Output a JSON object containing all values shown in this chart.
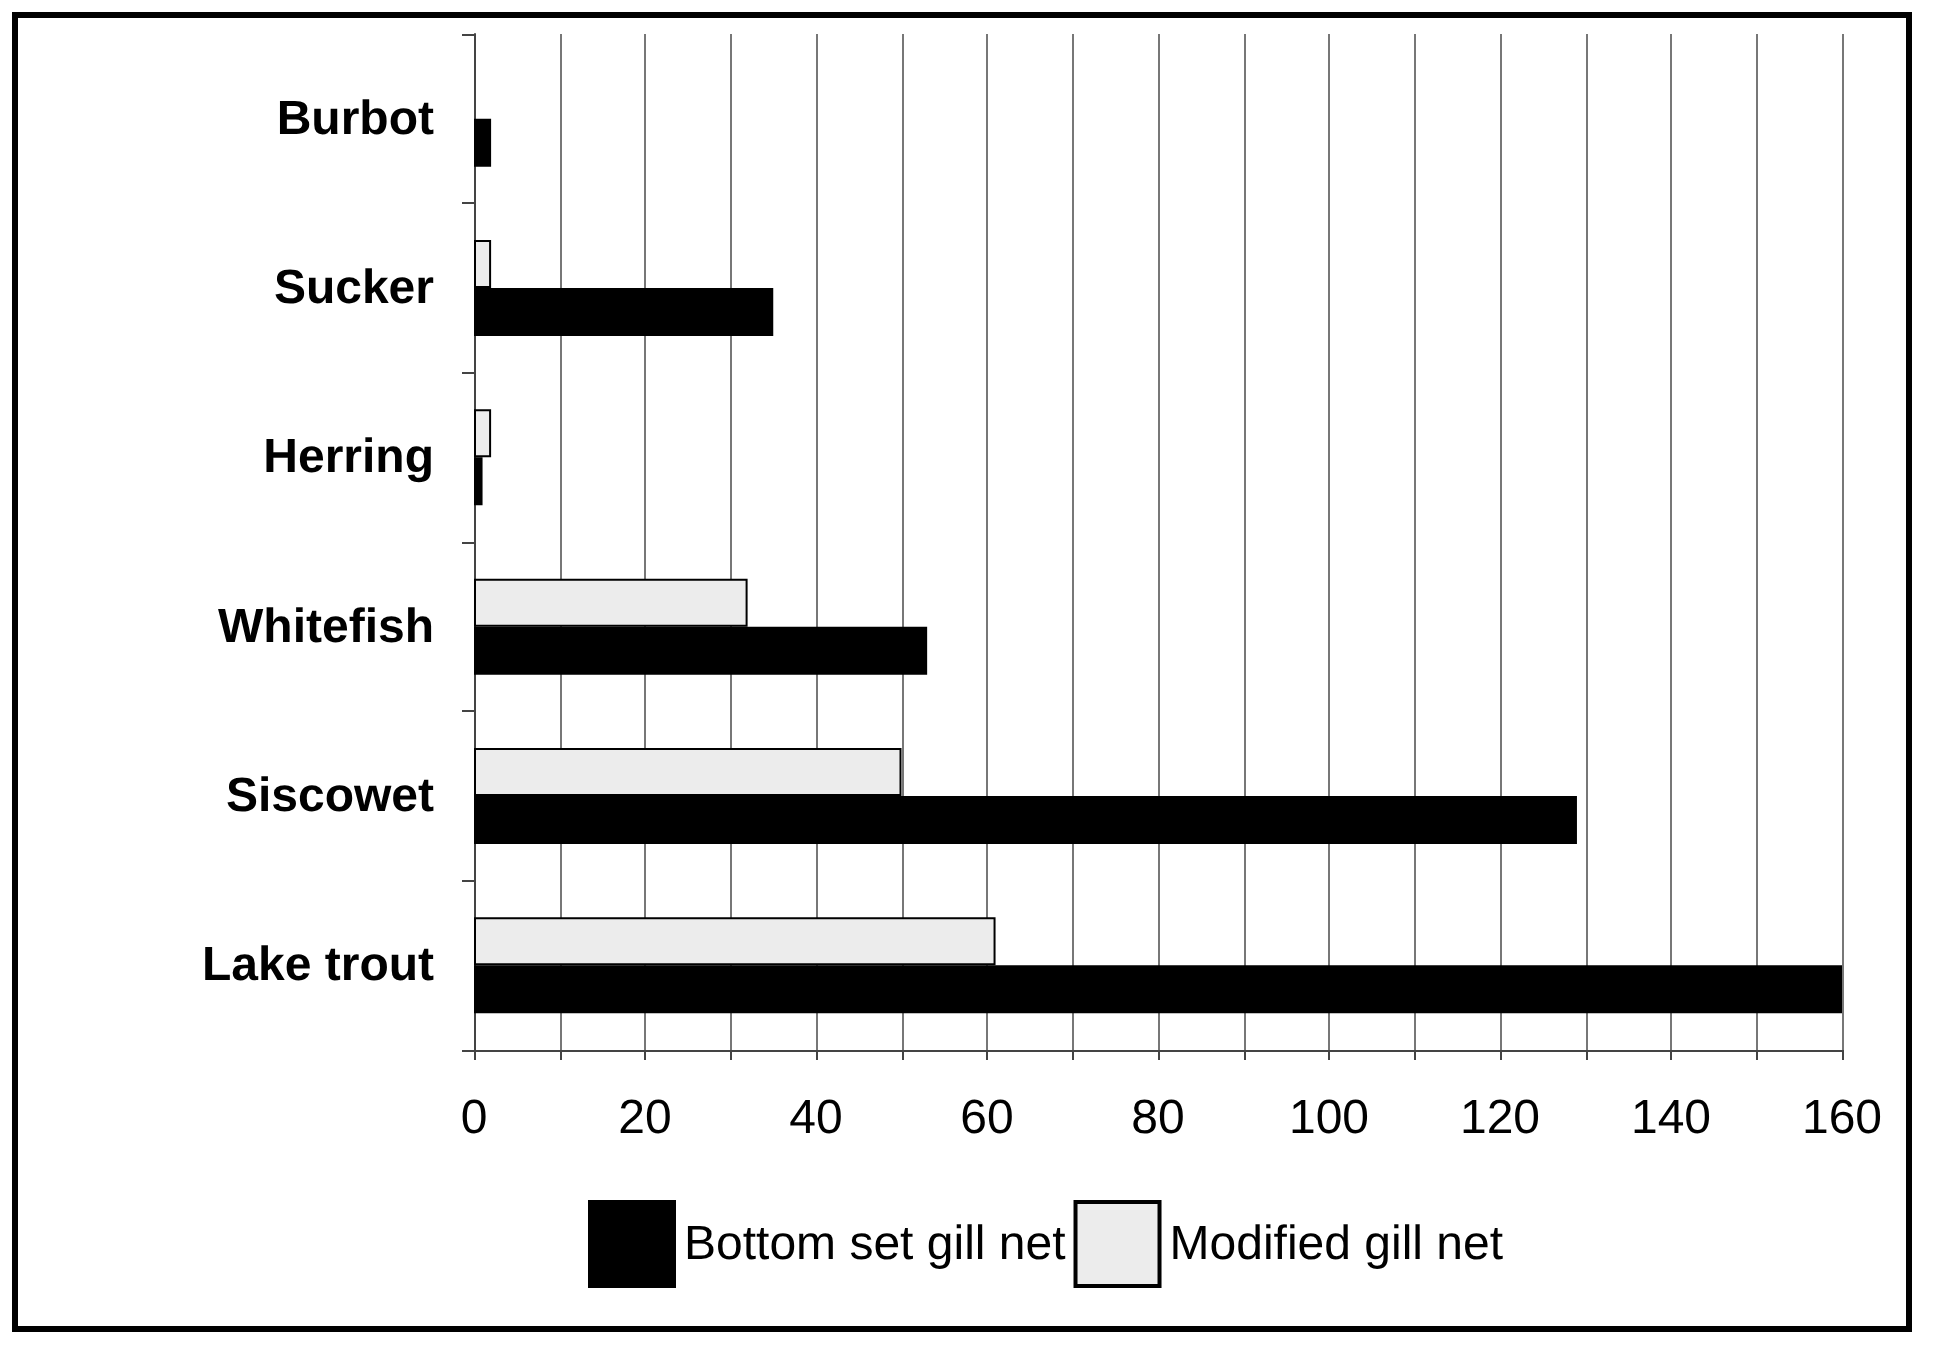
{
  "chart_data": {
    "type": "bar",
    "orientation": "horizontal",
    "categories": [
      "Burbot",
      "Sucker",
      "Herring",
      "Whitefish",
      "Siscowet",
      "Lake trout"
    ],
    "series": [
      {
        "name": "Bottom set gill net",
        "color": "#000000",
        "values": [
          2,
          35,
          1,
          53,
          129,
          160
        ]
      },
      {
        "name": "Modified gill net",
        "color": "#ececec",
        "values": [
          null,
          2,
          2,
          32,
          50,
          61
        ]
      }
    ],
    "xlim": [
      0,
      160
    ],
    "xticks": [
      0,
      {
        "value": 10,
        "label": null
      },
      20,
      {
        "value": 30,
        "label": null
      },
      40,
      {
        "value": 50,
        "label": null
      },
      60,
      {
        "value": 70,
        "label": null
      },
      80,
      {
        "value": 90,
        "label": null
      },
      100,
      {
        "value": 110,
        "label": null
      },
      120,
      {
        "value": 130,
        "label": null
      },
      140,
      {
        "value": 150,
        "label": null
      },
      160
    ],
    "grid": "x",
    "legend": "bottom"
  }
}
